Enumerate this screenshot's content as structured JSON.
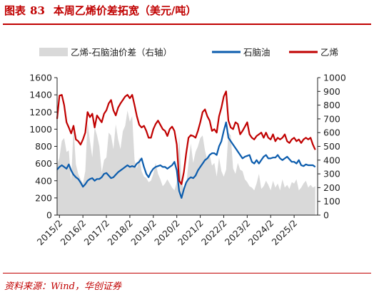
{
  "figure": {
    "label": "图表",
    "number": "83",
    "title": "本周乙烯价差拓宽（美元/吨）"
  },
  "source": "资料来源：Wind，华创证券",
  "chart_data": {
    "type": "line+area",
    "title": "本周乙烯价差拓宽（美元/吨）",
    "left_axis": {
      "ylim": [
        0,
        1600
      ],
      "ticks": [
        "0",
        "200",
        "400",
        "600",
        "800",
        "1000",
        "1200",
        "1400",
        "1600"
      ]
    },
    "right_axis": {
      "ylim": [
        0,
        1000
      ],
      "ticks": [
        "0",
        "100",
        "200",
        "300",
        "400",
        "500",
        "600",
        "700",
        "800",
        "900",
        "1000"
      ]
    },
    "x_ticks": [
      "2015/2",
      "2016/2",
      "2017/2",
      "2018/2",
      "2019/2",
      "2020/2",
      "2021/2",
      "2022/2",
      "2023/2",
      "2024/2",
      "2025/2"
    ],
    "x_range": [
      2015.0,
      2026.1
    ],
    "legend_position": "top",
    "colors": {
      "spread": "#d9d9d9",
      "naphtha": "#0b5cad",
      "ethylene": "#c00000"
    },
    "series": [
      {
        "name": "乙烯-石脑油价差（右轴）",
        "axis": "right",
        "kind": "area",
        "x": [
          2015.0,
          2015.1,
          2015.2,
          2015.3,
          2015.4,
          2015.5,
          2015.6,
          2015.7,
          2015.8,
          2015.9,
          2016.0,
          2016.1,
          2016.2,
          2016.3,
          2016.4,
          2016.5,
          2016.6,
          2016.7,
          2016.8,
          2016.9,
          2017.0,
          2017.1,
          2017.2,
          2017.3,
          2017.4,
          2017.5,
          2017.6,
          2017.7,
          2017.8,
          2017.9,
          2018.0,
          2018.1,
          2018.2,
          2018.3,
          2018.4,
          2018.5,
          2018.6,
          2018.7,
          2018.8,
          2018.9,
          2019.0,
          2019.1,
          2019.2,
          2019.3,
          2019.4,
          2019.5,
          2019.6,
          2019.7,
          2019.8,
          2019.9,
          2020.0,
          2020.1,
          2020.2,
          2020.3,
          2020.4,
          2020.5,
          2020.6,
          2020.7,
          2020.8,
          2020.9,
          2021.0,
          2021.1,
          2021.2,
          2021.3,
          2021.4,
          2021.5,
          2021.6,
          2021.7,
          2021.8,
          2021.9,
          2022.0,
          2022.1,
          2022.2,
          2022.3,
          2022.4,
          2022.5,
          2022.6,
          2022.7,
          2022.8,
          2022.9,
          2023.0,
          2023.1,
          2023.2,
          2023.3,
          2023.4,
          2023.5,
          2023.6,
          2023.7,
          2023.8,
          2023.9,
          2024.0,
          2024.1,
          2024.2,
          2024.3,
          2024.4,
          2024.5,
          2024.6,
          2024.7,
          2024.8,
          2024.9,
          2025.0,
          2025.1,
          2025.2,
          2025.3,
          2025.4,
          2025.5,
          2025.6,
          2025.7,
          2025.8,
          2025.9,
          2026.0
        ],
        "values": [
          360,
          420,
          540,
          560,
          460,
          470,
          250,
          640,
          370,
          300,
          260,
          230,
          320,
          670,
          540,
          420,
          640,
          580,
          500,
          310,
          400,
          420,
          600,
          580,
          480,
          660,
          550,
          480,
          610,
          650,
          760,
          680,
          720,
          400,
          340,
          420,
          320,
          280,
          270,
          240,
          250,
          300,
          380,
          300,
          260,
          210,
          230,
          260,
          230,
          200,
          180,
          240,
          580,
          260,
          180,
          220,
          380,
          520,
          380,
          460,
          500,
          560,
          580,
          470,
          400,
          440,
          360,
          380,
          280,
          420,
          320,
          280,
          330,
          600,
          580,
          340,
          300,
          380,
          330,
          320,
          260,
          240,
          210,
          200,
          180,
          230,
          300,
          190,
          210,
          250,
          220,
          180,
          250,
          200,
          230,
          180,
          260,
          200,
          220,
          190,
          240,
          230,
          260,
          180,
          200,
          230,
          250,
          200,
          220,
          200,
          210
        ]
      },
      {
        "name": "石脑油",
        "axis": "left",
        "kind": "line",
        "x": [
          2015.0,
          2015.1,
          2015.2,
          2015.3,
          2015.4,
          2015.5,
          2015.6,
          2015.7,
          2015.8,
          2015.9,
          2016.0,
          2016.1,
          2016.2,
          2016.3,
          2016.4,
          2016.5,
          2016.6,
          2016.7,
          2016.8,
          2016.9,
          2017.0,
          2017.1,
          2017.2,
          2017.3,
          2017.4,
          2017.5,
          2017.6,
          2017.7,
          2017.8,
          2017.9,
          2018.0,
          2018.1,
          2018.2,
          2018.3,
          2018.4,
          2018.5,
          2018.6,
          2018.7,
          2018.8,
          2018.9,
          2019.0,
          2019.1,
          2019.2,
          2019.3,
          2019.4,
          2019.5,
          2019.6,
          2019.7,
          2019.8,
          2019.9,
          2020.0,
          2020.1,
          2020.2,
          2020.3,
          2020.4,
          2020.5,
          2020.6,
          2020.7,
          2020.8,
          2020.9,
          2021.0,
          2021.1,
          2021.2,
          2021.3,
          2021.4,
          2021.5,
          2021.6,
          2021.7,
          2021.8,
          2021.9,
          2022.0,
          2022.1,
          2022.2,
          2022.3,
          2022.4,
          2022.5,
          2022.6,
          2022.7,
          2022.8,
          2022.9,
          2023.0,
          2023.1,
          2023.2,
          2023.3,
          2023.4,
          2023.5,
          2023.6,
          2023.7,
          2023.8,
          2023.9,
          2024.0,
          2024.1,
          2024.2,
          2024.3,
          2024.4,
          2024.5,
          2024.6,
          2024.7,
          2024.8,
          2024.9,
          2025.0,
          2025.1,
          2025.2,
          2025.3,
          2025.4,
          2025.5,
          2025.6,
          2025.7,
          2025.8,
          2025.9,
          2026.0
        ],
        "values": [
          530,
          560,
          580,
          560,
          540,
          590,
          520,
          470,
          440,
          420,
          380,
          330,
          360,
          400,
          420,
          430,
          400,
          420,
          420,
          440,
          480,
          490,
          460,
          430,
          440,
          470,
          500,
          520,
          540,
          560,
          580,
          560,
          570,
          560,
          600,
          620,
          660,
          560,
          480,
          440,
          500,
          540,
          560,
          570,
          580,
          560,
          560,
          540,
          560,
          580,
          620,
          520,
          280,
          200,
          300,
          380,
          420,
          440,
          430,
          460,
          520,
          560,
          600,
          640,
          660,
          700,
          720,
          720,
          700,
          800,
          860,
          980,
          1080,
          900,
          860,
          820,
          780,
          740,
          700,
          660,
          680,
          690,
          700,
          620,
          600,
          640,
          600,
          640,
          680,
          700,
          660,
          660,
          670,
          670,
          700,
          660,
          640,
          660,
          680,
          650,
          620,
          620,
          600,
          640,
          580,
          570,
          590,
          580,
          580,
          580,
          560
        ]
      },
      {
        "name": "乙烯",
        "axis": "left",
        "kind": "line",
        "x": [
          2015.0,
          2015.1,
          2015.2,
          2015.3,
          2015.4,
          2015.5,
          2015.6,
          2015.7,
          2015.8,
          2015.9,
          2016.0,
          2016.1,
          2016.2,
          2016.3,
          2016.4,
          2016.5,
          2016.6,
          2016.7,
          2016.8,
          2016.9,
          2017.0,
          2017.1,
          2017.2,
          2017.3,
          2017.4,
          2017.5,
          2017.6,
          2017.7,
          2017.8,
          2017.9,
          2018.0,
          2018.1,
          2018.2,
          2018.3,
          2018.4,
          2018.5,
          2018.6,
          2018.7,
          2018.8,
          2018.9,
          2019.0,
          2019.1,
          2019.2,
          2019.3,
          2019.4,
          2019.5,
          2019.6,
          2019.7,
          2019.8,
          2019.9,
          2020.0,
          2020.1,
          2020.2,
          2020.3,
          2020.4,
          2020.5,
          2020.6,
          2020.7,
          2020.8,
          2020.9,
          2021.0,
          2021.1,
          2021.2,
          2021.3,
          2021.4,
          2021.5,
          2021.6,
          2021.7,
          2021.8,
          2021.9,
          2022.0,
          2022.1,
          2022.2,
          2022.3,
          2022.4,
          2022.5,
          2022.6,
          2022.7,
          2022.8,
          2022.9,
          2023.0,
          2023.1,
          2023.2,
          2023.3,
          2023.4,
          2023.5,
          2023.6,
          2023.7,
          2023.8,
          2023.9,
          2024.0,
          2024.1,
          2024.2,
          2024.3,
          2024.4,
          2024.5,
          2024.6,
          2024.7,
          2024.8,
          2024.9,
          2025.0,
          2025.1,
          2025.2,
          2025.3,
          2025.4,
          2025.5,
          2025.6,
          2025.7,
          2025.8,
          2025.9,
          2026.0
        ],
        "values": [
          1120,
          1390,
          1400,
          1280,
          1080,
          1020,
          950,
          1040,
          880,
          860,
          820,
          880,
          960,
          1200,
          1140,
          1180,
          1020,
          1160,
          1120,
          1080,
          1180,
          1220,
          1300,
          1340,
          1220,
          1160,
          1250,
          1300,
          1340,
          1380,
          1400,
          1360,
          1400,
          1280,
          1150,
          1050,
          1020,
          1040,
          980,
          900,
          900,
          1000,
          1060,
          1100,
          1050,
          1000,
          980,
          920,
          1000,
          1030,
          980,
          820,
          400,
          360,
          500,
          720,
          900,
          930,
          920,
          900,
          980,
          1080,
          1200,
          1230,
          1150,
          1100,
          980,
          1000,
          960,
          1150,
          1250,
          1380,
          1440,
          1100,
          1020,
          1000,
          1080,
          1060,
          940,
          980,
          1030,
          1080,
          940,
          900,
          880,
          920,
          940,
          960,
          900,
          960,
          900,
          880,
          940,
          860,
          900,
          880,
          900,
          940,
          860,
          840,
          880,
          900,
          860,
          880,
          840,
          880,
          900,
          880,
          900,
          820,
          760
        ]
      }
    ]
  }
}
